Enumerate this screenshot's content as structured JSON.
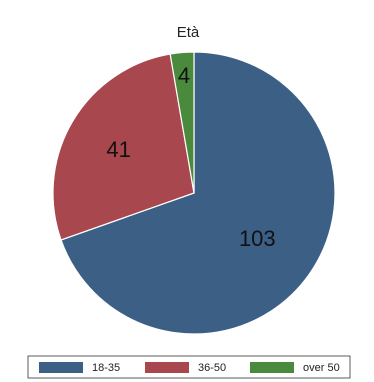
{
  "chart_data": {
    "type": "pie",
    "title": "Età",
    "categories": [
      "18-35",
      "36-50",
      "over 50"
    ],
    "values": [
      103,
      41,
      4
    ],
    "data_labels": [
      "103",
      "41",
      "4"
    ],
    "colors": [
      "#3b5f85",
      "#a8474d",
      "#4a8a3c"
    ],
    "start": "12 o'clock",
    "direction": "clockwise",
    "legend": {
      "placement": "bottom",
      "entries": [
        "18-35",
        "36-50",
        "over 50"
      ]
    }
  }
}
